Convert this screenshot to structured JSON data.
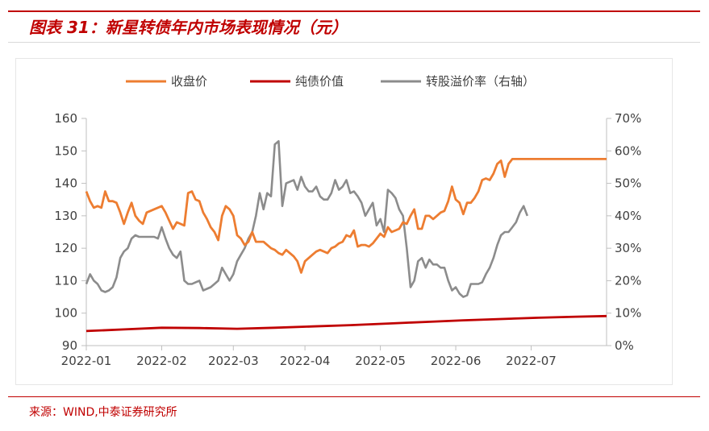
{
  "header": {
    "title": "图表 31：新星转债年内市场表现情况（元）"
  },
  "footer": {
    "source": "来源：WIND,中泰证券研究所"
  },
  "colors": {
    "close": "#ed7d31",
    "bond": "#c00000",
    "premium": "#8c8c8c",
    "accent": "#c00000"
  },
  "chart_data": {
    "type": "line",
    "title": "",
    "legend": {
      "position": "top",
      "entries": [
        "收盘价",
        "纯债价值",
        "转股溢价率（右轴）"
      ]
    },
    "x_ticks": [
      "2022-01",
      "2022-02",
      "2022-03",
      "2022-04",
      "2022-05",
      "2022-06",
      "2022-07"
    ],
    "x_range": [
      0,
      138
    ],
    "x_tick_positions": [
      0,
      20,
      39,
      58,
      78,
      98,
      118
    ],
    "y_left": {
      "min": 90,
      "max": 160,
      "ticks": [
        "90",
        "100",
        "110",
        "120",
        "130",
        "140",
        "150",
        "160"
      ],
      "tick_values": [
        90,
        100,
        110,
        120,
        130,
        140,
        150,
        160
      ]
    },
    "y_right": {
      "min": 0,
      "max": 70,
      "ticks": [
        "0%",
        "10%",
        "20%",
        "30%",
        "40%",
        "50%",
        "60%",
        "70%"
      ],
      "tick_values": [
        0,
        10,
        20,
        30,
        40,
        50,
        60,
        70
      ]
    },
    "series": [
      {
        "name": "收盘价",
        "axis": "left",
        "color": "#ed7d31",
        "x": [
          0,
          1,
          2,
          3,
          4,
          5,
          6,
          7,
          8,
          9,
          10,
          11,
          12,
          13,
          14,
          15,
          16,
          17,
          18,
          19,
          20,
          21,
          22,
          23,
          24,
          25,
          26,
          27,
          28,
          29,
          30,
          31,
          32,
          33,
          34,
          35,
          36,
          37,
          38,
          39,
          40,
          41,
          42,
          43,
          44,
          45,
          46,
          47,
          48,
          49,
          50,
          51,
          52,
          53,
          54,
          55,
          56,
          57,
          58,
          59,
          60,
          61,
          62,
          63,
          64,
          65,
          66,
          67,
          68,
          69,
          70,
          71,
          72,
          73,
          74,
          75,
          76,
          77,
          78,
          79,
          80,
          81,
          82,
          83,
          84,
          85,
          86,
          87,
          88,
          89,
          90,
          91,
          92,
          93,
          94,
          95,
          96,
          97,
          98,
          99,
          100,
          101,
          102,
          103,
          104,
          105,
          106,
          107,
          108,
          109,
          110,
          111,
          112,
          113,
          114,
          115,
          116,
          117,
          118,
          119,
          120,
          121,
          122,
          123,
          124,
          125,
          126,
          127,
          128,
          129,
          130,
          131,
          132,
          133,
          134,
          135,
          136,
          137,
          138
        ],
        "values": [
          137.5,
          134.5,
          132.5,
          133,
          132.5,
          137.5,
          134.5,
          134.5,
          134,
          131,
          127.5,
          131,
          134,
          130,
          128.5,
          127.5,
          131,
          131.5,
          132,
          132.5,
          133,
          131,
          128.5,
          126,
          128,
          127.5,
          127,
          137,
          137.5,
          135,
          134.5,
          131,
          129,
          126.5,
          125,
          122.5,
          130,
          133,
          132,
          130,
          124,
          123,
          121,
          122,
          125,
          122,
          122,
          122,
          121,
          120,
          119.5,
          118.5,
          118,
          119.5,
          118.5,
          117.5,
          116,
          112.5,
          116,
          117,
          118,
          119,
          119.5,
          119,
          118.5,
          120,
          120.5,
          121.5,
          122,
          124,
          123.5,
          125.5,
          120.5,
          121,
          121,
          120.5,
          121.5,
          123,
          124.5,
          123.5,
          126.5,
          125,
          125.5,
          126,
          128,
          127.5,
          130,
          132,
          126,
          126,
          130,
          130,
          129,
          130,
          131,
          131.5,
          134.5,
          139,
          135,
          134,
          130.5,
          134,
          134,
          135.5,
          137.5,
          141,
          141.5,
          141,
          143,
          146,
          147,
          142,
          146,
          147.5,
          147.5,
          147.5,
          147.5,
          147.5,
          147.5,
          147.5,
          147.5,
          147.5,
          147.5,
          147.5,
          147.5,
          147.5,
          147.5,
          147.5,
          147.5,
          147.5,
          147.5,
          147.5,
          147.5,
          147.5,
          147.5,
          147.5,
          147.5,
          147.5,
          147.5
        ]
      },
      {
        "name": "纯债价值",
        "axis": "left",
        "color": "#c00000",
        "x": [
          0,
          10,
          20,
          30,
          40,
          50,
          60,
          70,
          80,
          90,
          100,
          110,
          120,
          130,
          138
        ],
        "values": [
          94.5,
          95,
          95.5,
          95.4,
          95.2,
          95.5,
          95.9,
          96.3,
          96.8,
          97.3,
          97.8,
          98.2,
          98.6,
          98.9,
          99.1
        ]
      },
      {
        "name": "转股溢价率（右轴）",
        "axis": "right",
        "color": "#8c8c8c",
        "x": [
          0,
          1,
          2,
          3,
          4,
          5,
          6,
          7,
          8,
          9,
          10,
          11,
          12,
          13,
          14,
          15,
          16,
          17,
          18,
          19,
          20,
          21,
          22,
          23,
          24,
          25,
          26,
          27,
          28,
          29,
          30,
          31,
          32,
          33,
          34,
          35,
          36,
          37,
          38,
          39,
          40,
          41,
          42,
          43,
          44,
          45,
          46,
          47,
          48,
          49,
          50,
          51,
          52,
          53,
          54,
          55,
          56,
          57,
          58,
          59,
          60,
          61,
          62,
          63,
          64,
          65,
          66,
          67,
          68,
          69,
          70,
          71,
          72,
          73,
          74,
          75,
          76,
          77,
          78,
          79,
          80,
          81,
          82,
          83,
          84,
          85,
          86,
          87,
          88,
          89,
          90,
          91,
          92,
          93,
          94,
          95,
          96,
          97,
          98,
          99,
          100,
          101,
          102,
          103,
          104,
          105,
          106,
          107,
          108,
          109,
          110,
          111,
          112,
          113,
          114,
          115,
          116,
          117
        ],
        "values": [
          19,
          22,
          20,
          19,
          17,
          16.5,
          17,
          18,
          21,
          27,
          29,
          30,
          33,
          34,
          33.5,
          33.5,
          33.5,
          33.5,
          33.5,
          33,
          36.5,
          33,
          30,
          28,
          27,
          29,
          20,
          19,
          19,
          19.5,
          20,
          17,
          17.5,
          18,
          19,
          20,
          24,
          22,
          20,
          22,
          26,
          28,
          30,
          33,
          35,
          40,
          47,
          42,
          47,
          46,
          62,
          63,
          43,
          50,
          50.5,
          51,
          48,
          52,
          49,
          47.5,
          47.5,
          49,
          46,
          45,
          45,
          47,
          51,
          48,
          49,
          51,
          47,
          47.5,
          46,
          44,
          40,
          42,
          44,
          37,
          39,
          35,
          48,
          47,
          45.5,
          42,
          40,
          30,
          18,
          20,
          26,
          27,
          24,
          26.5,
          25,
          25,
          24,
          24,
          20,
          17,
          18,
          16,
          15,
          15.5,
          19,
          19,
          19,
          19.5,
          22,
          24,
          27,
          31,
          34,
          35,
          35,
          36.5,
          38,
          41,
          43,
          40
        ]
      }
    ]
  }
}
